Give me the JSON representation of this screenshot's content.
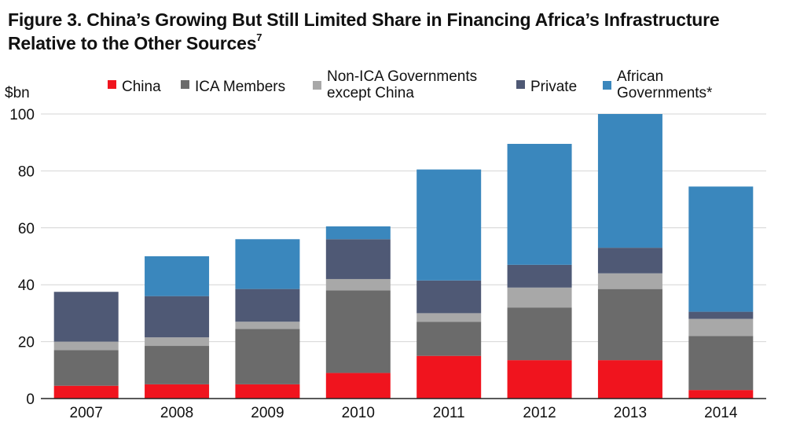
{
  "figure": {
    "title_line1": "Figure 3. China’s Growing But Still Limited Share in Financing Africa’s Infrastructure",
    "title_line2": "Relative to the Other Sources",
    "title_footnote": "7"
  },
  "chart_data": {
    "type": "bar",
    "stacked": true,
    "title": "Figure 3. China’s Growing But Still Limited Share in Financing Africa’s Infrastructure Relative to the Other Sources",
    "xlabel": "",
    "ylabel": "$bn",
    "ylim": [
      0,
      100
    ],
    "yticks": [
      0,
      20,
      40,
      60,
      80,
      100
    ],
    "grid": true,
    "legend_position": "top",
    "categories": [
      "2007",
      "2008",
      "2009",
      "2010",
      "2011",
      "2012",
      "2013",
      "2014"
    ],
    "series": [
      {
        "name": "China",
        "color": "#f0141e",
        "values": [
          4.5,
          5,
          5,
          9,
          15,
          13.5,
          13.5,
          3
        ]
      },
      {
        "name": "ICA Members",
        "color": "#6b6b6b",
        "values": [
          12.5,
          13.5,
          19.5,
          29,
          12,
          18.5,
          25,
          19
        ]
      },
      {
        "name": "Non-ICA Governments except China",
        "legend_lines": [
          "Non-ICA Governments",
          "except China"
        ],
        "color": "#a8a8a8",
        "values": [
          3,
          3,
          2.5,
          4,
          3,
          7,
          5.5,
          6
        ]
      },
      {
        "name": "Private",
        "legend_lines": [
          "Private"
        ],
        "color": "#4f5975",
        "values": [
          17.5,
          14.5,
          11.5,
          14,
          11.5,
          8,
          9,
          2.5
        ]
      },
      {
        "name": "African Governments*",
        "legend_lines": [
          "African",
          "Governments*"
        ],
        "color": "#3a87bd",
        "values": [
          0,
          14,
          17.5,
          4.5,
          39,
          42.5,
          47,
          44
        ]
      }
    ]
  }
}
